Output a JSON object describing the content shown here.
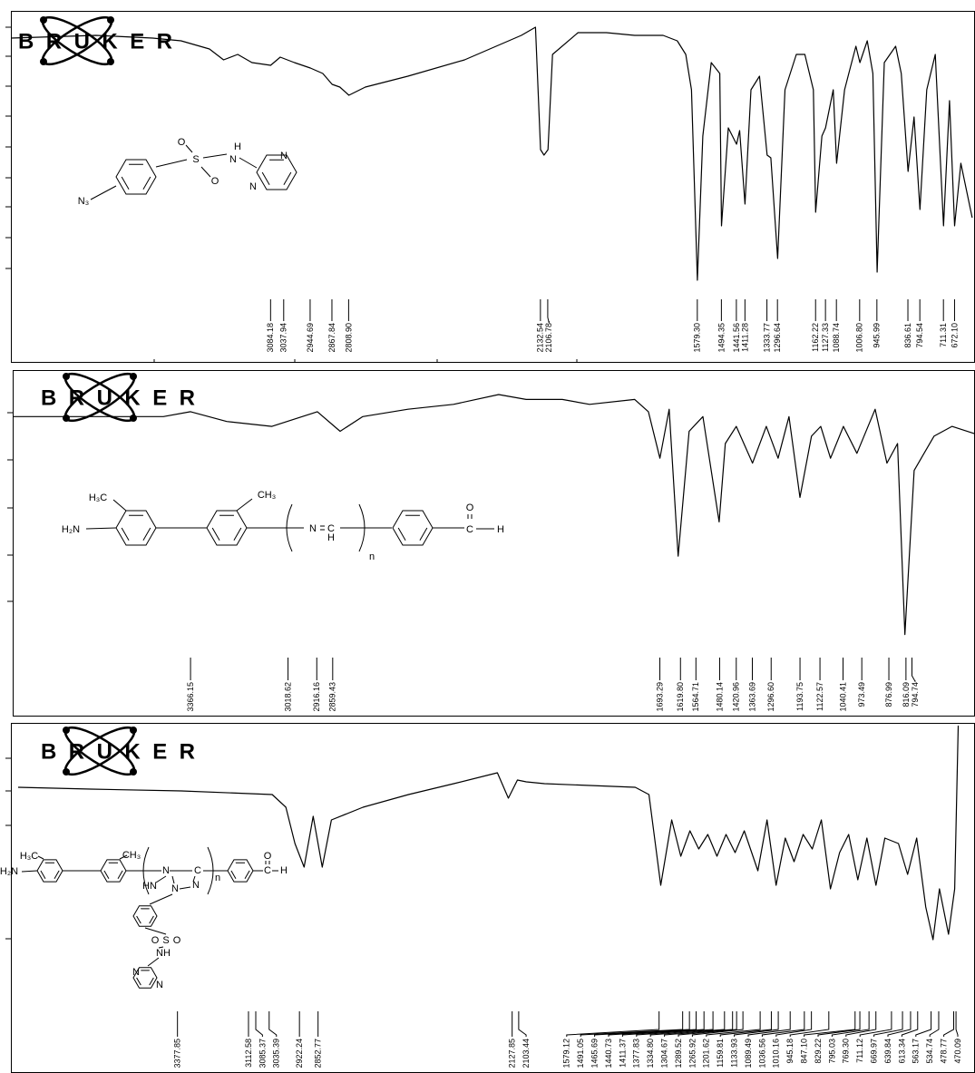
{
  "chart_data": [
    {
      "type": "line",
      "logo": "BRUKER",
      "color": "#000000",
      "xlim": [
        4000,
        600
      ],
      "ylim": [
        0,
        100
      ],
      "x": [
        4000,
        3700,
        3500,
        3400,
        3300,
        3250,
        3200,
        3150,
        3084,
        3050,
        3000,
        2944,
        2900,
        2867,
        2840,
        2808,
        2750,
        2600,
        2400,
        2200,
        2150,
        2132,
        2120,
        2106,
        2090,
        2000,
        1900,
        1800,
        1700,
        1650,
        1620,
        1600,
        1579,
        1560,
        1530,
        1500,
        1494,
        1470,
        1441,
        1430,
        1411,
        1390,
        1360,
        1333,
        1320,
        1296,
        1270,
        1230,
        1200,
        1170,
        1162,
        1140,
        1127,
        1100,
        1088,
        1060,
        1040,
        1020,
        1006,
        980,
        960,
        945,
        920,
        880,
        860,
        836,
        815,
        794,
        770,
        740,
        711,
        690,
        672,
        650,
        610
      ],
      "values": [
        91,
        92,
        91,
        90,
        87,
        83,
        85,
        82,
        81,
        84,
        82,
        80,
        78,
        74,
        73,
        70,
        73,
        77,
        83,
        92,
        95,
        50,
        48,
        50,
        85,
        93,
        93,
        92,
        92,
        90,
        85,
        72,
        2,
        55,
        82,
        78,
        22,
        58,
        52,
        57,
        30,
        72,
        77,
        48,
        47,
        10,
        72,
        85,
        85,
        72,
        27,
        55,
        58,
        72,
        45,
        72,
        80,
        88,
        82,
        90,
        78,
        5,
        82,
        88,
        78,
        42,
        62,
        28,
        72,
        85,
        22,
        68,
        22,
        45,
        25
      ],
      "peaks": [
        {
          "value": 3084.18,
          "label": "3084.18"
        },
        {
          "value": 3037.94,
          "label": "3037.94"
        },
        {
          "value": 2944.69,
          "label": "2944.69"
        },
        {
          "value": 2867.84,
          "label": "2867.84"
        },
        {
          "value": 2808.9,
          "label": "2808.90"
        },
        {
          "value": 2132.54,
          "label": "2132.54"
        },
        {
          "value": 2106.78,
          "label": "2106.78"
        },
        {
          "value": 1579.3,
          "label": "1579.30"
        },
        {
          "value": 1494.35,
          "label": "1494.35"
        },
        {
          "value": 1441.56,
          "label": "1441.56"
        },
        {
          "value": 1411.28,
          "label": "1411.28"
        },
        {
          "value": 1333.77,
          "label": "1333.77"
        },
        {
          "value": 1296.64,
          "label": "1296.64"
        },
        {
          "value": 1162.22,
          "label": "1162.22"
        },
        {
          "value": 1127.33,
          "label": "1127.33"
        },
        {
          "value": 1088.74,
          "label": "1088.74"
        },
        {
          "value": 1006.8,
          "label": "1006.80"
        },
        {
          "value": 945.99,
          "label": "945.99"
        },
        {
          "value": 836.61,
          "label": "836.61"
        },
        {
          "value": 794.54,
          "label": "794.54"
        },
        {
          "value": 711.31,
          "label": "711.31"
        },
        {
          "value": 672.1,
          "label": "672.10"
        }
      ],
      "annotations": [
        "N₃",
        "S",
        "O",
        "O",
        "N",
        "H",
        "N",
        "N"
      ]
    },
    {
      "type": "line",
      "logo": "BRUKER",
      "color": "#000000",
      "xlim": [
        4000,
        570
      ],
      "ylim": [
        0,
        100
      ],
      "x": [
        4000,
        3722,
        3463,
        3366,
        3237,
        3076,
        2914,
        2833,
        2752,
        2591,
        2429,
        2268,
        2170,
        2041,
        1944,
        1783,
        1734,
        1693,
        1660,
        1628,
        1589,
        1540,
        1482,
        1460,
        1421,
        1363,
        1314,
        1272,
        1233,
        1194,
        1153,
        1120,
        1085,
        1039,
        991,
        926,
        884,
        846,
        820,
        787,
        716,
        652,
        571
      ],
      "values": [
        91,
        91,
        91,
        93,
        89,
        87,
        93,
        85,
        91,
        94,
        96,
        100,
        98,
        98,
        96,
        98,
        93,
        74,
        94,
        34,
        85,
        91,
        48,
        80,
        87,
        72,
        87,
        74,
        91,
        58,
        83,
        87,
        74,
        87,
        76,
        94,
        72,
        80,
        2,
        69,
        83,
        87,
        84
      ],
      "peaks": [
        {
          "value": 3366.15,
          "label": "3366.15"
        },
        {
          "value": 3018.62,
          "label": "3018.62"
        },
        {
          "value": 2916.16,
          "label": "2916.16"
        },
        {
          "value": 2859.43,
          "label": "2859.43"
        },
        {
          "value": 1693.29,
          "label": "1693.29"
        },
        {
          "value": 1619.8,
          "label": "1619.80"
        },
        {
          "value": 1564.71,
          "label": "1564.71"
        },
        {
          "value": 1480.14,
          "label": "1480.14"
        },
        {
          "value": 1420.96,
          "label": "1420.96"
        },
        {
          "value": 1363.69,
          "label": "1363.69"
        },
        {
          "value": 1296.6,
          "label": "1296.60"
        },
        {
          "value": 1193.75,
          "label": "1193.75"
        },
        {
          "value": 1122.57,
          "label": "1122.57"
        },
        {
          "value": 1040.41,
          "label": "1040.41"
        },
        {
          "value": 973.49,
          "label": "973.49"
        },
        {
          "value": 876.99,
          "label": "876.99"
        },
        {
          "value": 816.09,
          "label": "816.09"
        },
        {
          "value": 794.74,
          "label": "794.74"
        }
      ],
      "annotations": [
        "H₃C",
        "CH₃",
        "H₂N",
        "N",
        "C",
        "H",
        "C",
        "O",
        "H",
        "n"
      ]
    },
    {
      "type": "line",
      "logo": "BRUKER",
      "color": "#000000",
      "xlim": [
        4000,
        450
      ],
      "ylim": [
        0,
        125
      ],
      "x": [
        3973,
        3702,
        3363,
        3024,
        2973,
        2939,
        2905,
        2871,
        2837,
        2803,
        2685,
        2515,
        2346,
        2183,
        2142,
        2108,
        2075,
        2007,
        1668,
        1617,
        1573,
        1532,
        1498,
        1464,
        1431,
        1397,
        1363,
        1329,
        1295,
        1261,
        1210,
        1176,
        1142,
        1108,
        1075,
        1041,
        1007,
        973,
        939,
        905,
        871,
        837,
        803,
        769,
        736,
        685,
        651,
        617,
        583,
        556,
        532,
        498,
        475,
        462
      ],
      "values": [
        86,
        85,
        84,
        82,
        75,
        55,
        42,
        70,
        42,
        68,
        75,
        82,
        88,
        94,
        80,
        90,
        89,
        88,
        86,
        82,
        32,
        68,
        48,
        62,
        52,
        60,
        48,
        60,
        50,
        62,
        40,
        68,
        32,
        58,
        45,
        60,
        52,
        68,
        30,
        50,
        60,
        35,
        58,
        32,
        58,
        55,
        38,
        58,
        20,
        2,
        30,
        5,
        30,
        120
      ],
      "peaks": [
        {
          "value": 3377.85,
          "label": "3377.85"
        },
        {
          "value": 3112.58,
          "label": "3112.58"
        },
        {
          "value": 3085.37,
          "label": "3085.37"
        },
        {
          "value": 3035.39,
          "label": "3035.39"
        },
        {
          "value": 2922.24,
          "label": "2922.24"
        },
        {
          "value": 2852.77,
          "label": "2852.77"
        },
        {
          "value": 2127.85,
          "label": "2127.85"
        },
        {
          "value": 2103.44,
          "label": "2103.44"
        },
        {
          "value": 1579.12,
          "label": "1579.12"
        },
        {
          "value": 1491.05,
          "label": "1491.05"
        },
        {
          "value": 1465.69,
          "label": "1465.69"
        },
        {
          "value": 1440.73,
          "label": "1440.73"
        },
        {
          "value": 1411.37,
          "label": "1411.37"
        },
        {
          "value": 1377.83,
          "label": "1377.83"
        },
        {
          "value": 1334.8,
          "label": "1334.80"
        },
        {
          "value": 1304.67,
          "label": "1304.67"
        },
        {
          "value": 1289.52,
          "label": "1289.52"
        },
        {
          "value": 1265.92,
          "label": "1265.92"
        },
        {
          "value": 1201.62,
          "label": "1201.62"
        },
        {
          "value": 1159.81,
          "label": "1159.81"
        },
        {
          "value": 1133.93,
          "label": "1133.93"
        },
        {
          "value": 1089.49,
          "label": "1089.49"
        },
        {
          "value": 1036.56,
          "label": "1036.56"
        },
        {
          "value": 1010.16,
          "label": "1010.16"
        },
        {
          "value": 945.18,
          "label": "945.18"
        },
        {
          "value": 847.1,
          "label": "847.10"
        },
        {
          "value": 829.22,
          "label": "829.22"
        },
        {
          "value": 795.03,
          "label": "795.03"
        },
        {
          "value": 769.3,
          "label": "769.30"
        },
        {
          "value": 711.12,
          "label": "711.12"
        },
        {
          "value": 669.97,
          "label": "669.97"
        },
        {
          "value": 639.84,
          "label": "639.84"
        },
        {
          "value": 613.34,
          "label": "613.34"
        },
        {
          "value": 563.17,
          "label": "563.17"
        },
        {
          "value": 534.74,
          "label": "534.74"
        },
        {
          "value": 478.77,
          "label": "478.77"
        },
        {
          "value": 470.09,
          "label": "470.09"
        }
      ],
      "annotations": [
        "H₃C",
        "CH₃",
        "H₂N",
        "N",
        "C",
        "HN",
        "N",
        "N",
        "n",
        "C",
        "O",
        "H",
        "O",
        "S",
        "O",
        "NH",
        "N",
        "N"
      ]
    }
  ]
}
